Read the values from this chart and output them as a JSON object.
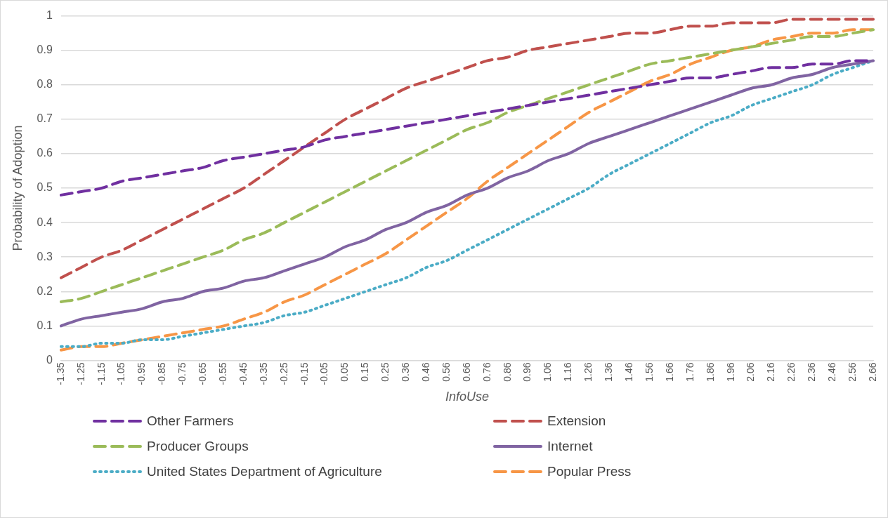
{
  "chart_data": {
    "type": "line",
    "xlabel": "InfoUse",
    "ylabel": "Probability of Adoption",
    "categories": [
      "-1.35",
      "-1.25",
      "-1.15",
      "-1.05",
      "-0.95",
      "-0.85",
      "-0.75",
      "-0.65",
      "-0.55",
      "-0.45",
      "-0.35",
      "-0.25",
      "-0.15",
      "-0.05",
      "0.05",
      "0.15",
      "0.25",
      "0.36",
      "0.46",
      "0.56",
      "0.66",
      "0.76",
      "0.86",
      "0.96",
      "1.06",
      "1.16",
      "1.26",
      "1.36",
      "1.46",
      "1.56",
      "1.66",
      "1.76",
      "1.86",
      "1.96",
      "2.06",
      "2.16",
      "2.26",
      "2.36",
      "2.46",
      "2.56",
      "2.66"
    ],
    "ylim": [
      0,
      1
    ],
    "yticks": [
      0,
      0.1,
      0.2,
      0.3,
      0.4,
      0.5,
      0.6,
      0.7,
      0.8,
      0.9,
      1
    ],
    "grid": "y",
    "legend": "bottom",
    "marker": "none",
    "series": [
      {
        "name": "Other Farmers",
        "color": "#7030a0",
        "line_style": "dashed",
        "values": [
          0.48,
          0.49,
          0.5,
          0.52,
          0.53,
          0.54,
          0.55,
          0.56,
          0.58,
          0.59,
          0.6,
          0.61,
          0.62,
          0.64,
          0.65,
          0.66,
          0.67,
          0.68,
          0.69,
          0.7,
          0.71,
          0.72,
          0.73,
          0.74,
          0.75,
          0.76,
          0.77,
          0.78,
          0.79,
          0.8,
          0.81,
          0.82,
          0.82,
          0.83,
          0.84,
          0.85,
          0.85,
          0.86,
          0.86,
          0.87,
          0.87
        ]
      },
      {
        "name": "Extension",
        "color": "#c0504d",
        "line_style": "dashed",
        "values": [
          0.24,
          0.27,
          0.3,
          0.32,
          0.35,
          0.38,
          0.41,
          0.44,
          0.47,
          0.5,
          0.54,
          0.58,
          0.62,
          0.66,
          0.7,
          0.73,
          0.76,
          0.79,
          0.81,
          0.83,
          0.85,
          0.87,
          0.88,
          0.9,
          0.91,
          0.92,
          0.93,
          0.94,
          0.95,
          0.95,
          0.96,
          0.97,
          0.97,
          0.98,
          0.98,
          0.98,
          0.99,
          0.99,
          0.99,
          0.99,
          0.99
        ]
      },
      {
        "name": "Producer Groups",
        "color": "#9bbb59",
        "line_style": "dashed",
        "values": [
          0.17,
          0.18,
          0.2,
          0.22,
          0.24,
          0.26,
          0.28,
          0.3,
          0.32,
          0.35,
          0.37,
          0.4,
          0.43,
          0.46,
          0.49,
          0.52,
          0.55,
          0.58,
          0.61,
          0.64,
          0.67,
          0.69,
          0.72,
          0.74,
          0.76,
          0.78,
          0.8,
          0.82,
          0.84,
          0.86,
          0.87,
          0.88,
          0.89,
          0.9,
          0.91,
          0.92,
          0.93,
          0.94,
          0.94,
          0.95,
          0.96
        ]
      },
      {
        "name": "Internet",
        "color": "#8064a2",
        "line_style": "solid",
        "values": [
          0.1,
          0.12,
          0.13,
          0.14,
          0.15,
          0.17,
          0.18,
          0.2,
          0.21,
          0.23,
          0.24,
          0.26,
          0.28,
          0.3,
          0.33,
          0.35,
          0.38,
          0.4,
          0.43,
          0.45,
          0.48,
          0.5,
          0.53,
          0.55,
          0.58,
          0.6,
          0.63,
          0.65,
          0.67,
          0.69,
          0.71,
          0.73,
          0.75,
          0.77,
          0.79,
          0.8,
          0.82,
          0.83,
          0.85,
          0.86,
          0.87
        ]
      },
      {
        "name": "United States Department of Agriculture",
        "color": "#4bacc6",
        "line_style": "dotted",
        "values": [
          0.04,
          0.04,
          0.05,
          0.05,
          0.06,
          0.06,
          0.07,
          0.08,
          0.09,
          0.1,
          0.11,
          0.13,
          0.14,
          0.16,
          0.18,
          0.2,
          0.22,
          0.24,
          0.27,
          0.29,
          0.32,
          0.35,
          0.38,
          0.41,
          0.44,
          0.47,
          0.5,
          0.54,
          0.57,
          0.6,
          0.63,
          0.66,
          0.69,
          0.71,
          0.74,
          0.76,
          0.78,
          0.8,
          0.83,
          0.85,
          0.87
        ]
      },
      {
        "name": "Popular Press",
        "color": "#f79646",
        "line_style": "dashed",
        "values": [
          0.03,
          0.04,
          0.04,
          0.05,
          0.06,
          0.07,
          0.08,
          0.09,
          0.1,
          0.12,
          0.14,
          0.17,
          0.19,
          0.22,
          0.25,
          0.28,
          0.31,
          0.35,
          0.39,
          0.43,
          0.47,
          0.52,
          0.56,
          0.6,
          0.64,
          0.68,
          0.72,
          0.75,
          0.78,
          0.81,
          0.83,
          0.86,
          0.88,
          0.9,
          0.91,
          0.93,
          0.94,
          0.95,
          0.95,
          0.96,
          0.96
        ]
      }
    ]
  }
}
